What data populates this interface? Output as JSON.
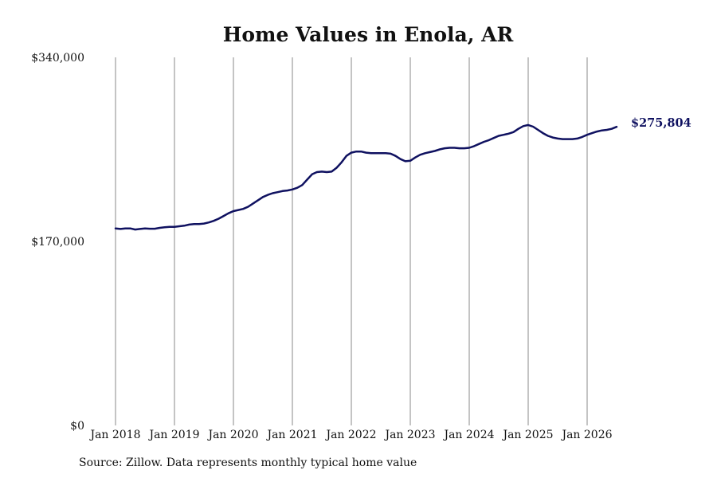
{
  "chart_data": {
    "type": "line",
    "title": "Home Values in Enola, AR",
    "xlabel": "",
    "ylabel": "",
    "ylim": [
      0,
      340000
    ],
    "y_ticks": [
      {
        "value": 0,
        "label": "$0"
      },
      {
        "value": 170000,
        "label": "$170,000"
      },
      {
        "value": 340000,
        "label": "$340,000"
      }
    ],
    "x_ticks": [
      "Jan 2018",
      "Jan 2019",
      "Jan 2020",
      "Jan 2021",
      "Jan 2022",
      "Jan 2023",
      "Jan 2024",
      "Jan 2025",
      "Jan 2026"
    ],
    "x_range": [
      "2018-01",
      "2026-07"
    ],
    "grid": "vertical",
    "line_color": "#0f1160",
    "series": [
      {
        "points": [
          [
            "2018-01",
            182000
          ],
          [
            "2018-02",
            181500
          ],
          [
            "2018-03",
            182000
          ],
          [
            "2018-04",
            182000
          ],
          [
            "2018-05",
            181000
          ],
          [
            "2018-06",
            181500
          ],
          [
            "2018-07",
            182000
          ],
          [
            "2018-08",
            181700
          ],
          [
            "2018-09",
            181700
          ],
          [
            "2018-10",
            182500
          ],
          [
            "2018-11",
            183000
          ],
          [
            "2018-12",
            183500
          ],
          [
            "2019-01",
            183500
          ],
          [
            "2019-02",
            184000
          ],
          [
            "2019-03",
            184500
          ],
          [
            "2019-04",
            185500
          ],
          [
            "2019-05",
            186000
          ],
          [
            "2019-06",
            186000
          ],
          [
            "2019-07",
            186500
          ],
          [
            "2019-08",
            187500
          ],
          [
            "2019-09",
            189000
          ],
          [
            "2019-10",
            191000
          ],
          [
            "2019-11",
            193500
          ],
          [
            "2019-12",
            196000
          ],
          [
            "2020-01",
            198000
          ],
          [
            "2020-02",
            199000
          ],
          [
            "2020-03",
            200000
          ],
          [
            "2020-04",
            202000
          ],
          [
            "2020-05",
            205000
          ],
          [
            "2020-06",
            208000
          ],
          [
            "2020-07",
            211000
          ],
          [
            "2020-08",
            213000
          ],
          [
            "2020-09",
            214500
          ],
          [
            "2020-10",
            215500
          ],
          [
            "2020-11",
            216500
          ],
          [
            "2020-12",
            217000
          ],
          [
            "2021-01",
            218000
          ],
          [
            "2021-02",
            219500
          ],
          [
            "2021-03",
            222000
          ],
          [
            "2021-04",
            227000
          ],
          [
            "2021-05",
            232000
          ],
          [
            "2021-06",
            234000
          ],
          [
            "2021-07",
            234500
          ],
          [
            "2021-08",
            234000
          ],
          [
            "2021-09",
            234500
          ],
          [
            "2021-10",
            238000
          ],
          [
            "2021-11",
            243000
          ],
          [
            "2021-12",
            249000
          ],
          [
            "2022-01",
            252000
          ],
          [
            "2022-02",
            253000
          ],
          [
            "2022-03",
            253000
          ],
          [
            "2022-04",
            252000
          ],
          [
            "2022-05",
            251500
          ],
          [
            "2022-06",
            251500
          ],
          [
            "2022-07",
            251500
          ],
          [
            "2022-08",
            251500
          ],
          [
            "2022-09",
            251000
          ],
          [
            "2022-10",
            249000
          ],
          [
            "2022-11",
            246000
          ],
          [
            "2022-12",
            244000
          ],
          [
            "2023-01",
            244500
          ],
          [
            "2023-02",
            247500
          ],
          [
            "2023-03",
            250000
          ],
          [
            "2023-04",
            251500
          ],
          [
            "2023-05",
            252500
          ],
          [
            "2023-06",
            253500
          ],
          [
            "2023-07",
            255000
          ],
          [
            "2023-08",
            256000
          ],
          [
            "2023-09",
            256500
          ],
          [
            "2023-10",
            256500
          ],
          [
            "2023-11",
            256000
          ],
          [
            "2023-12",
            256000
          ],
          [
            "2024-01",
            256500
          ],
          [
            "2024-02",
            258000
          ],
          [
            "2024-03",
            260000
          ],
          [
            "2024-04",
            262000
          ],
          [
            "2024-05",
            263500
          ],
          [
            "2024-06",
            265500
          ],
          [
            "2024-07",
            267500
          ],
          [
            "2024-08",
            268500
          ],
          [
            "2024-09",
            269500
          ],
          [
            "2024-10",
            271000
          ],
          [
            "2024-11",
            274000
          ],
          [
            "2024-12",
            276500
          ],
          [
            "2025-01",
            277500
          ],
          [
            "2025-02",
            276000
          ],
          [
            "2025-03",
            273000
          ],
          [
            "2025-04",
            270000
          ],
          [
            "2025-05",
            267500
          ],
          [
            "2025-06",
            266000
          ],
          [
            "2025-07",
            265000
          ],
          [
            "2025-08",
            264500
          ],
          [
            "2025-09",
            264500
          ],
          [
            "2025-10",
            264500
          ],
          [
            "2025-11",
            265000
          ],
          [
            "2025-12",
            266500
          ],
          [
            "2026-01",
            268500
          ],
          [
            "2026-02",
            270000
          ],
          [
            "2026-03",
            271500
          ],
          [
            "2026-04",
            272500
          ],
          [
            "2026-05",
            273000
          ],
          [
            "2026-06",
            274000
          ],
          [
            "2026-07",
            275804
          ]
        ]
      }
    ],
    "end_label": "$275,804",
    "end_label_color": "#0f1160"
  },
  "source_text": "Source: Zillow. Data represents monthly typical home value"
}
